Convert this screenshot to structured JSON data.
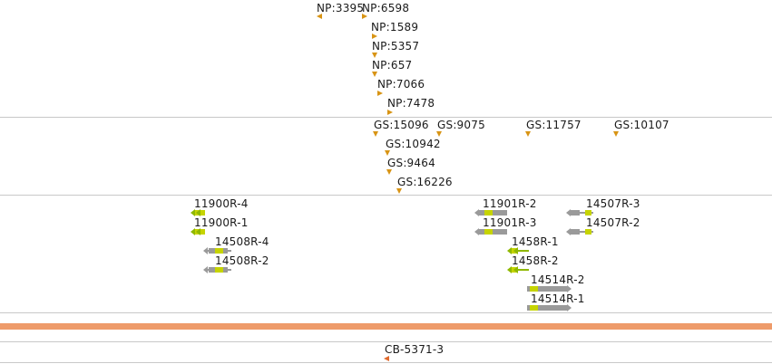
{
  "colors": {
    "np_marker": "#d89414",
    "gs_marker": "#d89414",
    "utr_grey": "#9a9a9a",
    "cds_green": "#c6d400",
    "arrow_green": "#8fb800",
    "reference_bar": "#ee9b6a",
    "cb_marker": "#e06a2e",
    "divider": "#c8c8c8"
  },
  "np_track": {
    "labels": [
      "NP:3395",
      "NP:6598",
      "NP:1589",
      "NP:5357",
      "NP:657",
      "NP:7066",
      "NP:7478"
    ]
  },
  "gs_track": {
    "labels": [
      "GS:15096",
      "GS:9075",
      "GS:11757",
      "GS:10107",
      "GS:10942",
      "GS:9464",
      "GS:16226"
    ]
  },
  "transcript_track": {
    "labels": [
      "11900R-4",
      "11900R-1",
      "14508R-4",
      "14508R-2",
      "11901R-2",
      "11901R-3",
      "1458R-1",
      "1458R-2",
      "14507R-3",
      "14507R-2",
      "14514R-2",
      "14514R-1"
    ]
  },
  "cb_track": {
    "labels": [
      "CB-5371-3"
    ]
  }
}
